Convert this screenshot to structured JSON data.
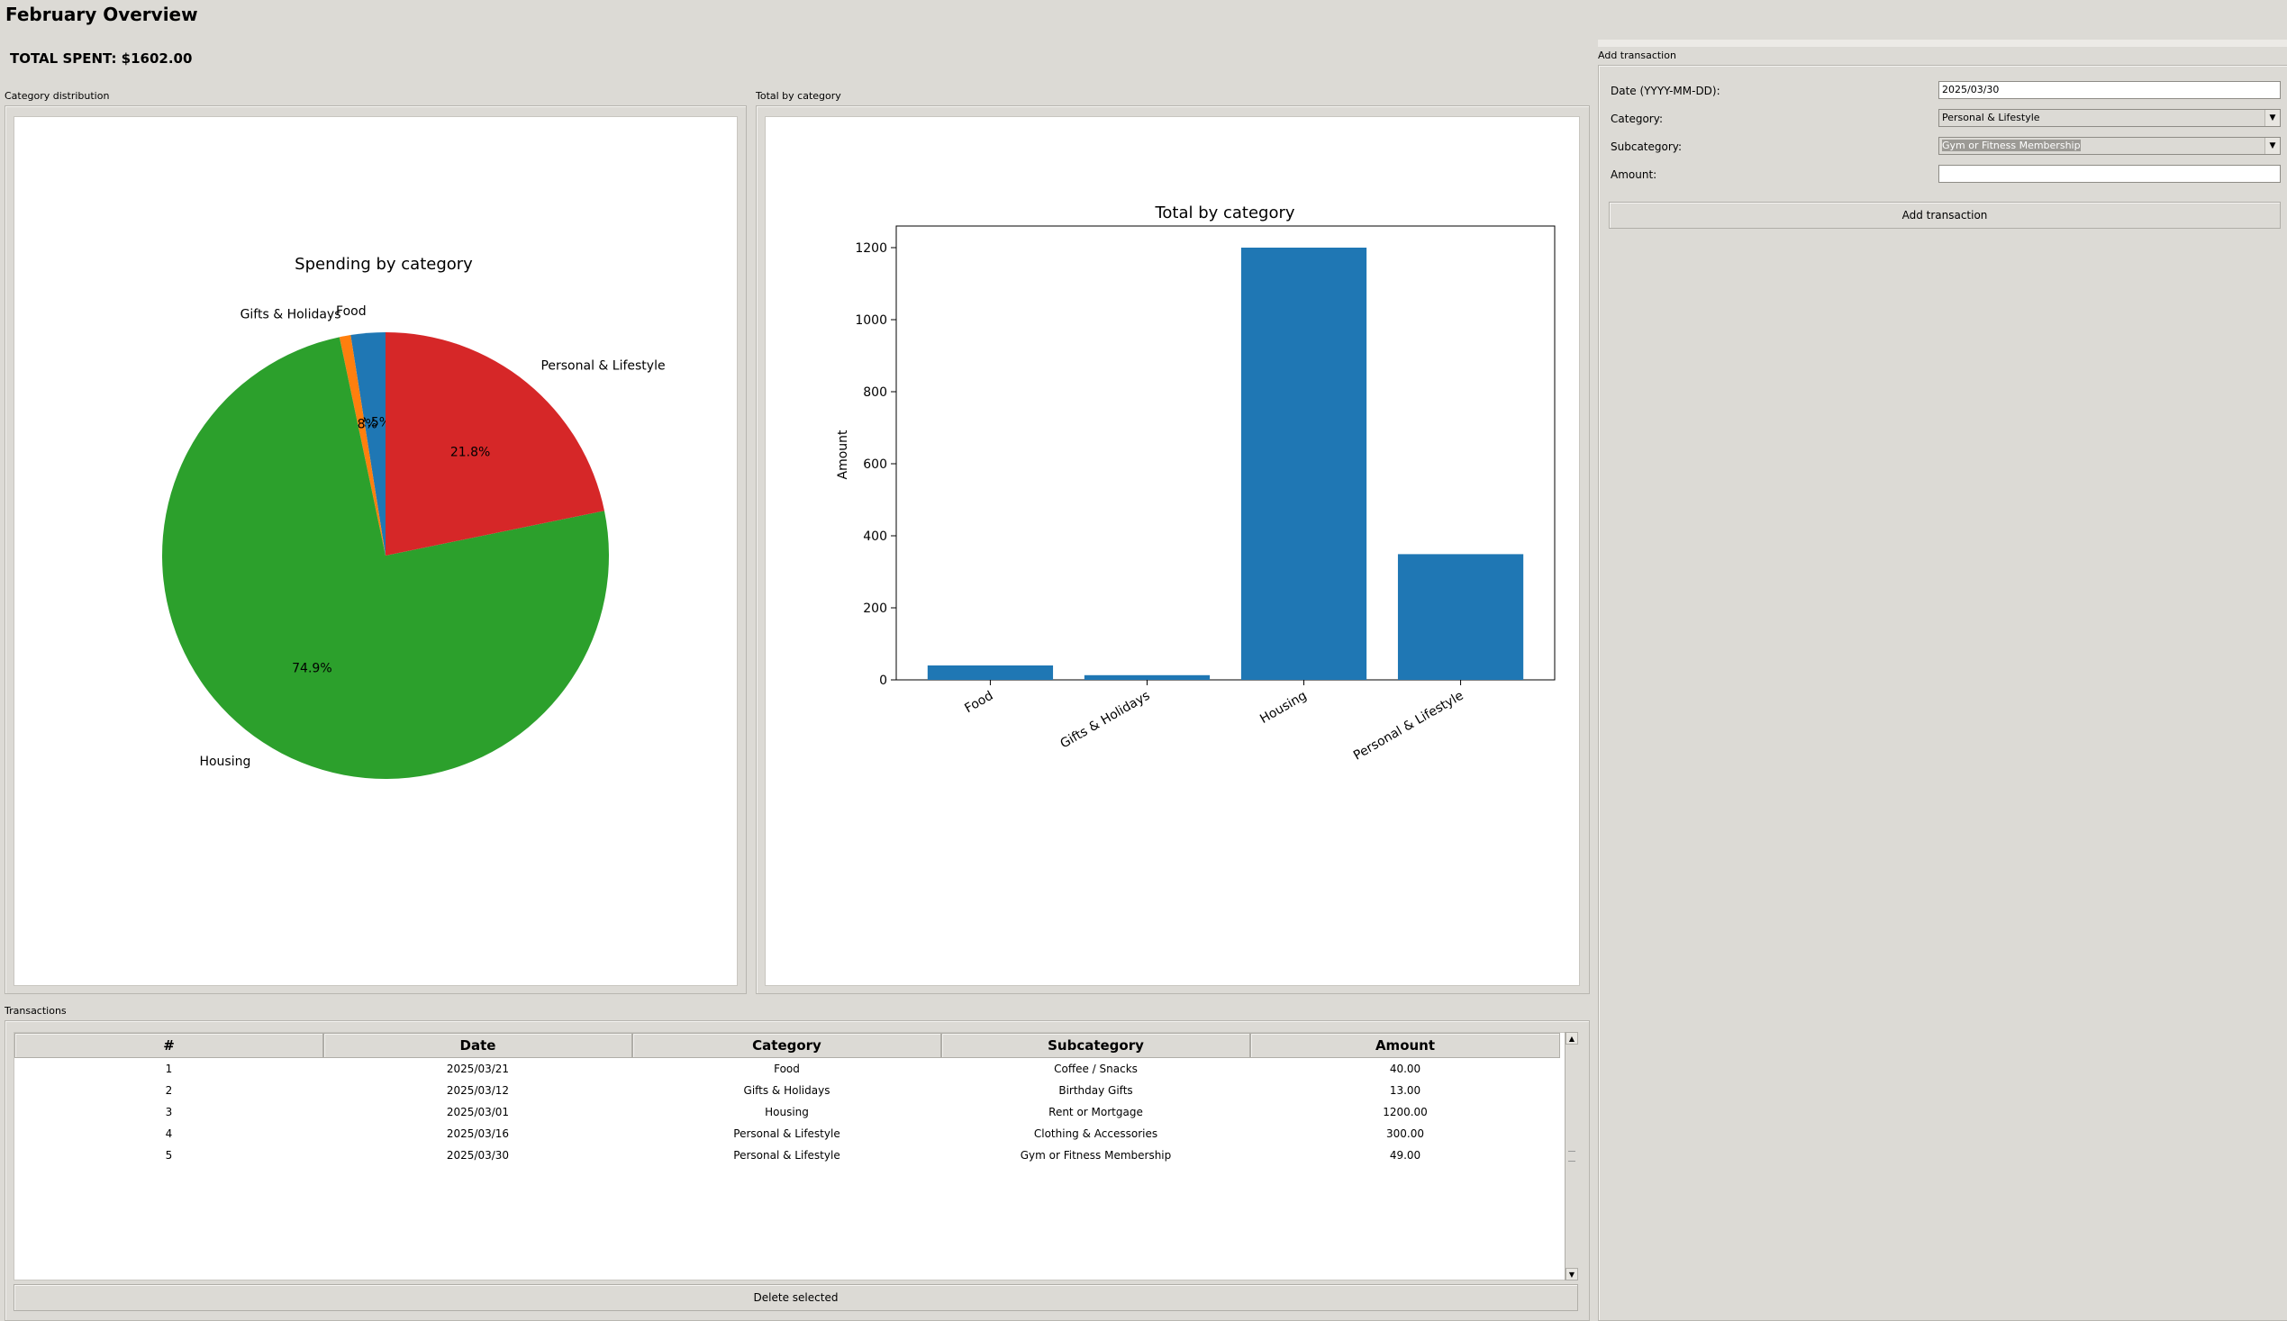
{
  "header": {
    "title": "February Overview",
    "total_spent": "TOTAL SPENT: $1602.00"
  },
  "pie_panel": {
    "label": "Category distribution",
    "title": "Spending by category"
  },
  "bar_panel": {
    "label": "Total by category",
    "title": "Total by category",
    "ylabel": "Amount"
  },
  "form": {
    "group_label": "Add transaction",
    "date_label": "Date (YYYY-MM-DD):",
    "date_value": "2025/03/30",
    "category_label": "Category:",
    "category_value": "Personal & Lifestyle",
    "subcategory_label": "Subcategory:",
    "subcategory_value": "Gym or Fitness Membership",
    "amount_label": "Amount:",
    "amount_value": "",
    "add_button": "Add transaction"
  },
  "transactions": {
    "label": "Transactions",
    "columns": [
      "#",
      "Date",
      "Category",
      "Subcategory",
      "Amount"
    ],
    "rows": [
      [
        "1",
        "2025/03/21",
        "Food",
        "Coffee / Snacks",
        "40.00"
      ],
      [
        "2",
        "2025/03/12",
        "Gifts & Holidays",
        "Birthday Gifts",
        "13.00"
      ],
      [
        "3",
        "2025/03/01",
        "Housing",
        "Rent or Mortgage",
        "1200.00"
      ],
      [
        "4",
        "2025/03/16",
        "Personal & Lifestyle",
        "Clothing & Accessories",
        "300.00"
      ],
      [
        "5",
        "2025/03/30",
        "Personal & Lifestyle",
        "Gym or Fitness Membership",
        "49.00"
      ]
    ],
    "delete_button": "Delete selected"
  },
  "chart_data": [
    {
      "type": "pie",
      "title": "Spending by category",
      "categories": [
        "Food",
        "Gifts & Holidays",
        "Housing",
        "Personal & Lifestyle"
      ],
      "values": [
        40,
        13,
        1200,
        349
      ],
      "percent_labels": [
        "2.5%",
        "0.8%",
        "74.9%",
        "21.8%"
      ],
      "colors": [
        "#1f77b4",
        "#ff7f0e",
        "#2ca02c",
        "#d62728"
      ]
    },
    {
      "type": "bar",
      "title": "Total by category",
      "categories": [
        "Food",
        "Gifts & Holidays",
        "Housing",
        "Personal & Lifestyle"
      ],
      "values": [
        40,
        13,
        1200,
        349
      ],
      "xlabel": "",
      "ylabel": "Amount",
      "ylim": [
        0,
        1260
      ],
      "yticks": [
        0,
        200,
        400,
        600,
        800,
        1000,
        1200
      ],
      "color": "#1f77b4"
    }
  ]
}
